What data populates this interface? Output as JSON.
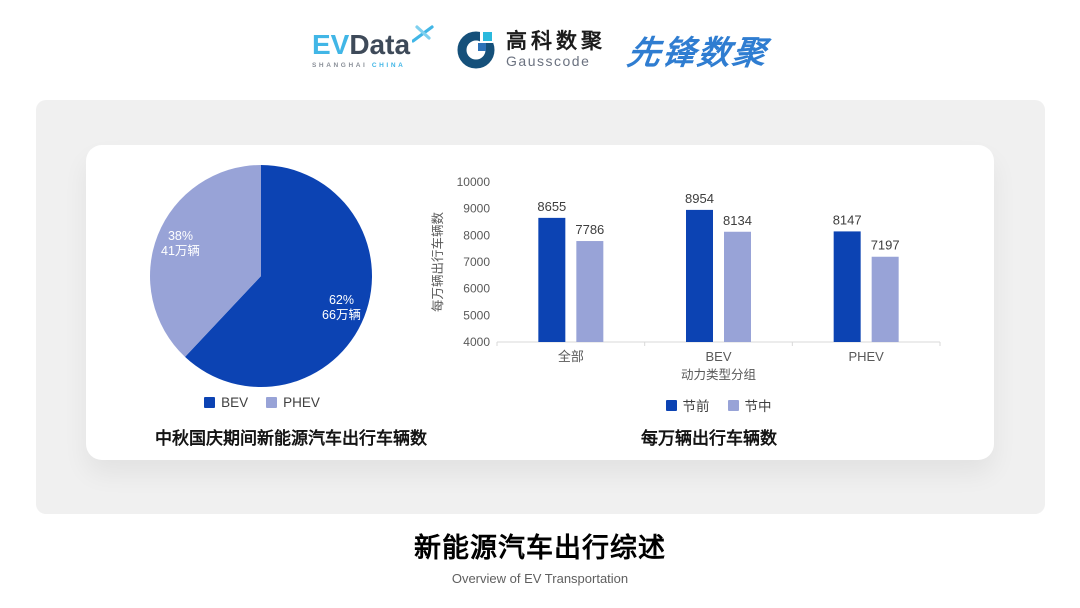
{
  "header": {
    "evdata": {
      "brand_ev": "EV",
      "brand_data": "Data",
      "sub1": "SHANGHAI",
      "sub2": "CHINA"
    },
    "gausscode": {
      "cn": "高科数聚",
      "en": "Gausscode"
    },
    "pioneer": {
      "text": "先锋数聚"
    }
  },
  "colors": {
    "primary_dark_blue": "#0c43b3",
    "secondary_light_purple": "#98a3d7",
    "axis_gray": "#595959",
    "axis_line": "#d9d9d9",
    "panel_gray": "#f0f0f0"
  },
  "chart_data": [
    {
      "type": "pie",
      "title": "中秋国庆期间新能源汽车出行车辆数",
      "slices": [
        {
          "label": "BEV",
          "pct": 62,
          "pct_label": "62%",
          "value_label": "66万辆",
          "color": "#0c43b3"
        },
        {
          "label": "PHEV",
          "pct": 38,
          "pct_label": "38%",
          "value_label": "41万辆",
          "color": "#98a3d7"
        }
      ],
      "legend": [
        "BEV",
        "PHEV"
      ],
      "legend_position": "bottom",
      "start_angle_deg": 0
    },
    {
      "type": "bar",
      "title": "每万辆出行车辆数",
      "categories": [
        "全部",
        "BEV",
        "PHEV"
      ],
      "series": [
        {
          "name": "节前",
          "color": "#0c43b3",
          "values": [
            8655,
            8954,
            8147
          ]
        },
        {
          "name": "节中",
          "color": "#98a3d7",
          "values": [
            7786,
            8134,
            7197
          ]
        }
      ],
      "xlabel": "动力类型分组",
      "ylabel": "每万辆出行车辆数",
      "ylim": [
        4000,
        10000
      ],
      "yticks": [
        4000,
        5000,
        6000,
        7000,
        8000,
        9000,
        10000
      ],
      "grid": false,
      "legend": [
        "节前",
        "节中"
      ],
      "legend_position": "bottom"
    }
  ],
  "footer": {
    "title": "新能源汽车出行综述",
    "subtitle": "Overview of EV Transportation"
  }
}
